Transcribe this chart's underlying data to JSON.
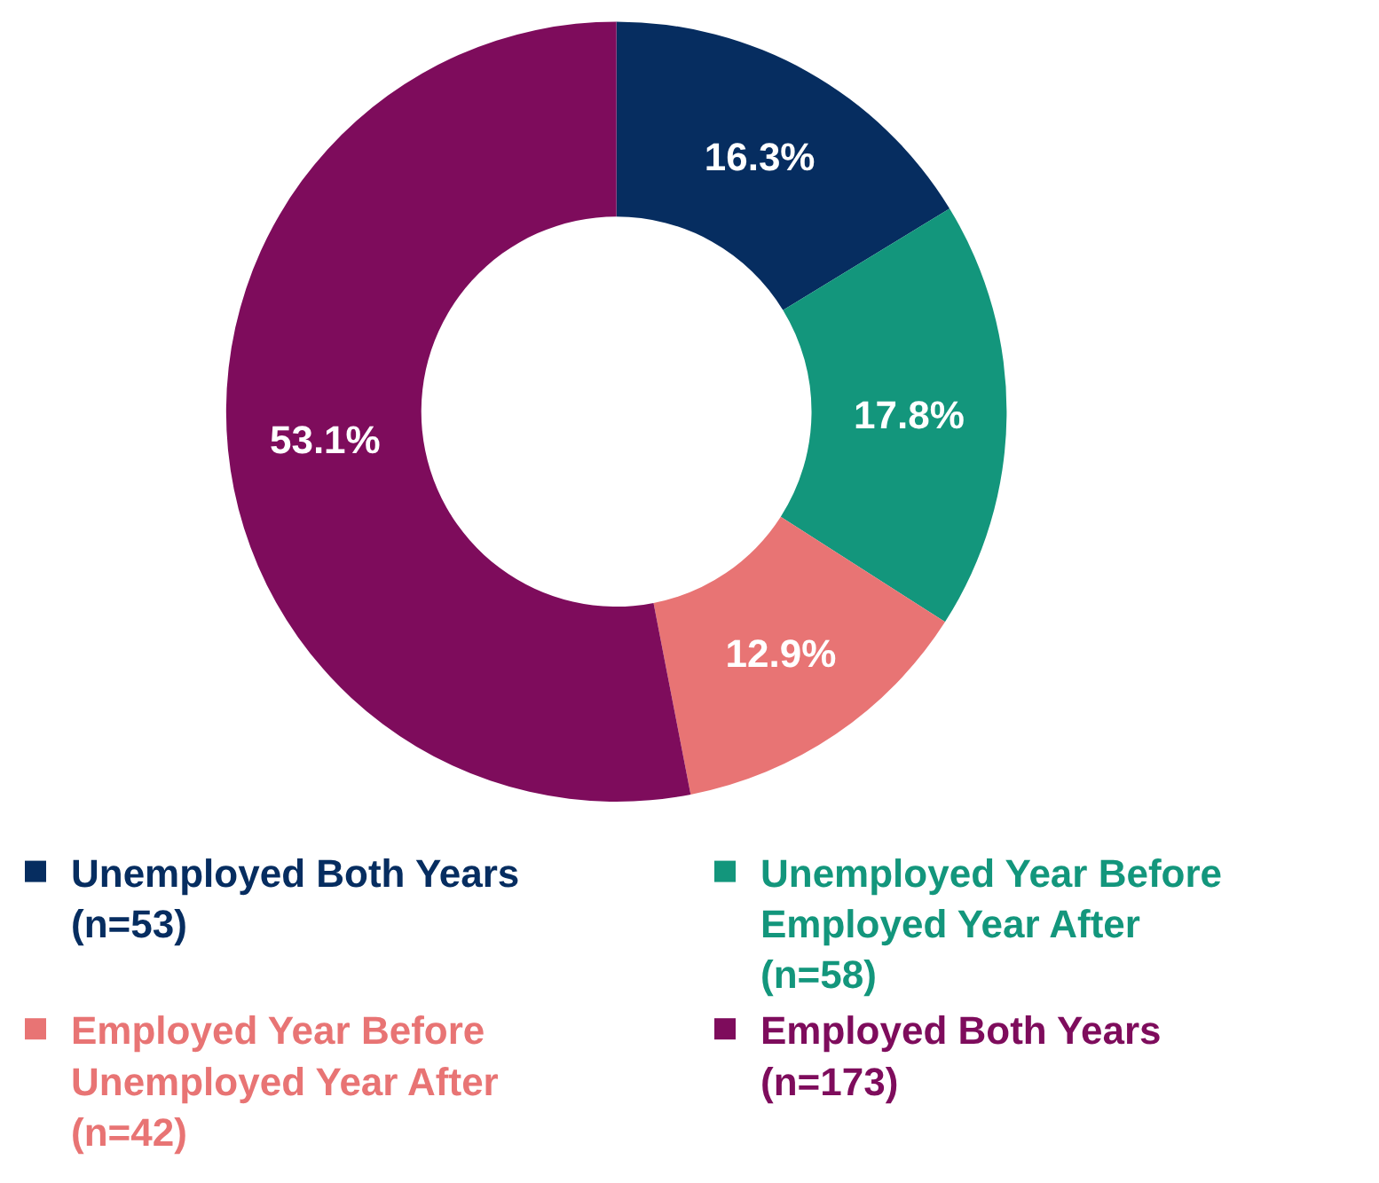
{
  "chart_data": {
    "type": "donut",
    "categories": [
      "Unemployed Both Years (n=53)",
      "Unemployed Year Before Employed Year After (n=58)",
      "Employed Year Before Unemployed Year After (n=42)",
      "Employed Both Years (n=173)"
    ],
    "values": [
      16.3,
      17.8,
      12.9,
      53.1
    ],
    "colors": [
      "#062d60",
      "#13967c",
      "#e87474",
      "#7e0c5c"
    ],
    "value_labels": [
      "16.3%",
      "17.8%",
      "12.9%",
      "53.1%"
    ],
    "legend": "bottom"
  }
}
